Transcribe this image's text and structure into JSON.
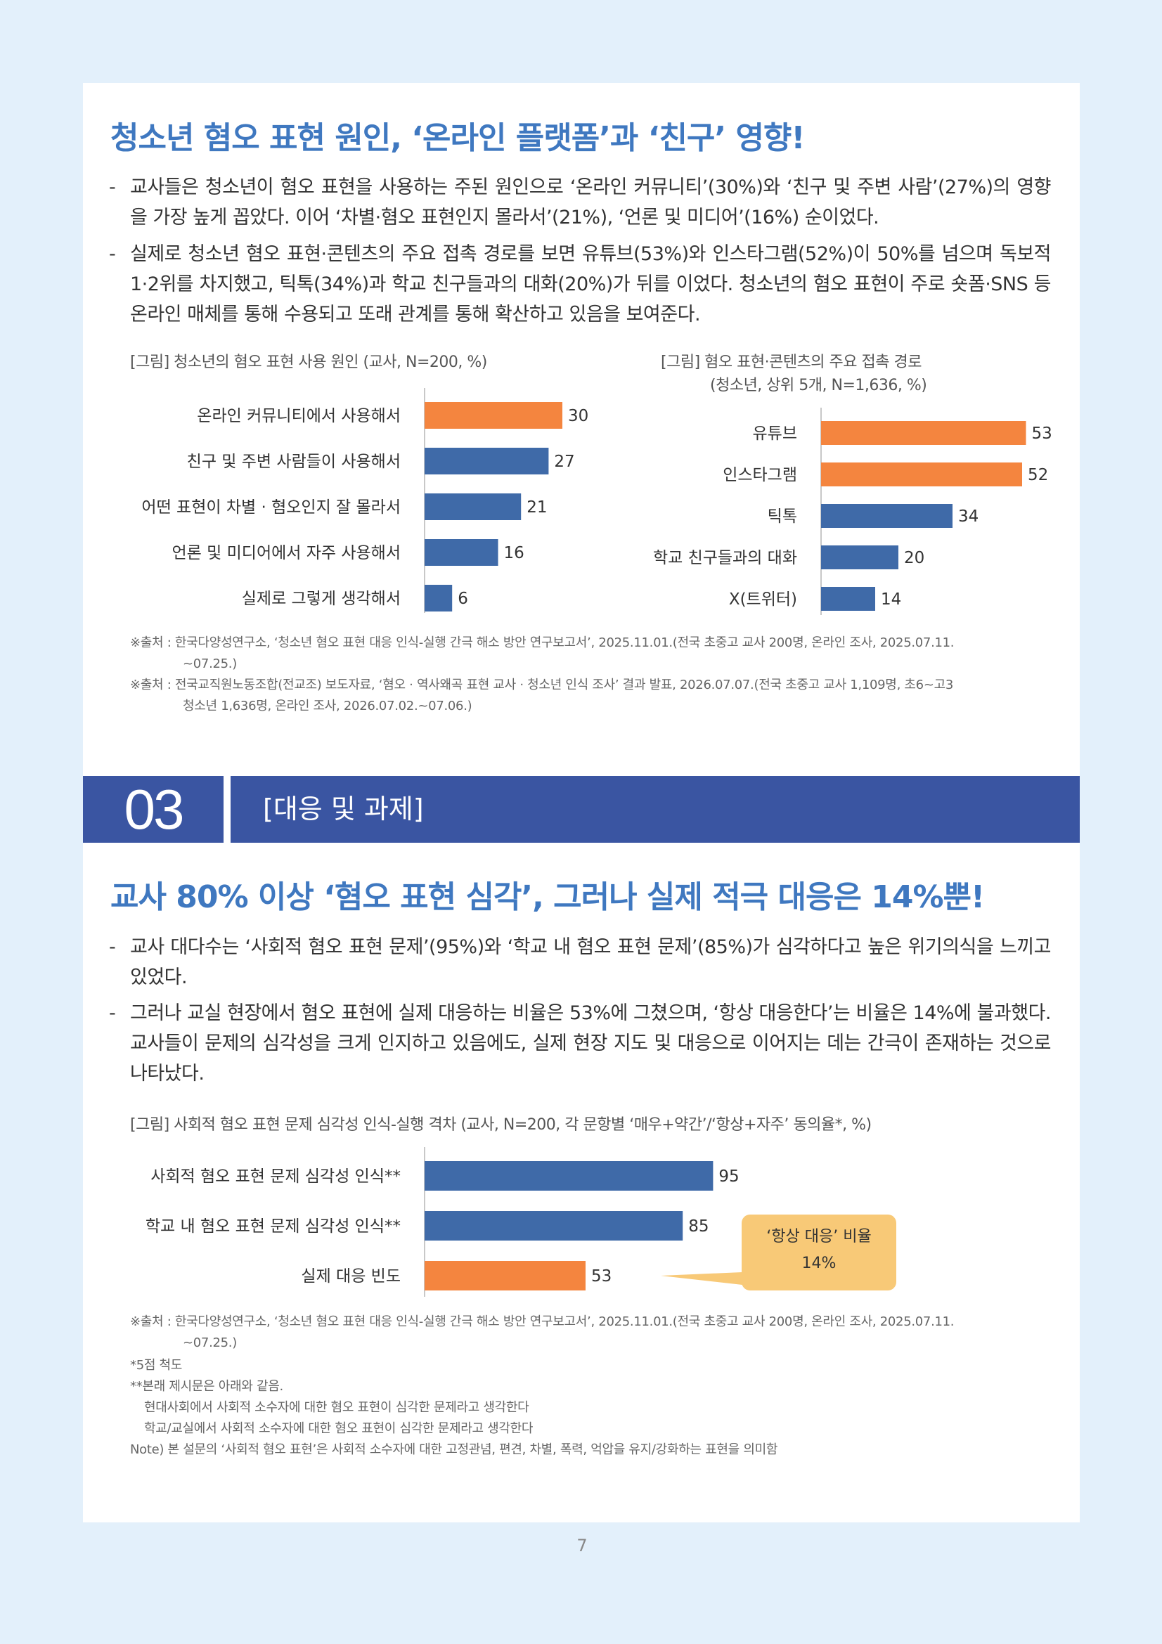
{
  "section1": {
    "headline": "청소년 혐오 표현 원인, ‘온라인 플랫폼’과 ‘친구’ 영향!",
    "bullets": [
      {
        "dash": "-",
        "text": "교사들은 청소년이 혐오 표현을 사용하는 주된 원인으로 ‘온라인 커뮤니티’(30%)와 ‘친구 및 주변 사람’(27%)의 영향을 가장 높게 꼽았다. 이어 ‘차별·혐오 표현인지 몰라서’(21%), ‘언론 및 미디어’(16%) 순이었다."
      },
      {
        "dash": "-",
        "text": "실제로 청소년 혐오 표현·콘텐츠의 주요 접촉 경로를 보면 유튜브(53%)와 인스타그램(52%)이 50%를 넘으며 독보적 1·2위를 차지했고, 틱톡(34%)과 학교 친구들과의 대화(20%)가 뒤를 이었다. 청소년의 혐오 표현이 주로 숏폼·SNS 등 온라인 매체를 통해 수용되고 또래 관계를 통해 확산하고 있음을 보여준다."
      }
    ],
    "fig1_caption": "[그림] 청소년의 혐오 표현 사용 원인 (교사, N=200, %)",
    "fig2_caption_line1": "[그림] 혐오 표현·콘텐츠의 주요 접촉 경로",
    "fig2_caption_line2": "(청소년, 상위 5개, N=1,636, %)",
    "sources": [
      {
        "line1": "※출처 : 한국다양성연구소, ‘청소년 혐오 표현 대응 인식-실행 간극 해소 방안 연구보고서’, 2025.11.01.(전국 초중고 교사 200명, 온라인 조사, 2025.07.11.",
        "line2": "~07.25.)"
      },
      {
        "line1": "※출처 : 전국교직원노동조합(전교조) 보도자료, ‘혐오 · 역사왜곡 표현 교사 · 청소년 인식 조사’ 결과 발표, 2026.07.07.(전국 초중고 교사 1,109명, 초6~고3",
        "line2": "청소년 1,636명, 온라인 조사, 2026.07.02.~07.06.)"
      }
    ]
  },
  "section3": {
    "number": "03",
    "title": "[대응 및 과제]",
    "headline": "교사 80% 이상 ‘혐오 표현 심각’, 그러나 실제 적극 대응은 14%뿐!",
    "bullets": [
      {
        "dash": "-",
        "text": "교사 대다수는 ‘사회적 혐오 표현 문제’(95%)와 ‘학교 내 혐오 표현 문제’(85%)가 심각하다고 높은 위기의식을 느끼고 있었다."
      },
      {
        "dash": "-",
        "text": "그러나 교실 현장에서 혐오 표현에 실제 대응하는 비율은 53%에 그쳤으며, ‘항상 대응한다’는 비율은 14%에 불과했다. 교사들이 문제의 심각성을 크게 인지하고 있음에도, 실제 현장 지도 및 대응으로 이어지는 데는 간극이 존재하는 것으로 나타났다."
      }
    ],
    "fig3_caption": "[그림] 사회적 혐오 표현 문제 심각성 인식-실행 격차 (교사, N=200, 각 문항별 ‘매우+약간’/‘항상+자주’ 동의율*, %)",
    "callout_line1": "‘항상 대응’ 비율",
    "callout_line2": "14%",
    "source_line1": "※출처 : 한국다양성연구소, ‘청소년 혐오 표현 대응 인식-실행 간극 해소 방안 연구보고서’, 2025.11.01.(전국 초중고 교사 200명, 온라인 조사, 2025.07.11.",
    "source_line2": "~07.25.)",
    "notes": [
      "*5점 척도",
      "**본래 제시문은 아래와 같음.",
      "현대사회에서 사회적 소수자에 대한 혐오 표현이 심각한 문제라고 생각한다",
      "학교/교실에서 사회적 소수자에 대한 혐오 표현이 심각한 문제라고 생각한다",
      "Note) 본 설문의 ‘사회적 혐오 표현’은 사회적 소수자에 대한 고정관념, 편견, 차별, 폭력, 억압을 유지/강화하는 표현을 의미함"
    ]
  },
  "page_number": "7",
  "colors": {
    "orange": "#f4853f",
    "blue": "#3f6aa8",
    "band": "#3a55a2",
    "headline": "#3f78c0",
    "callout": "#f8c977"
  },
  "chart_data": [
    {
      "type": "bar",
      "orientation": "horizontal",
      "categories": [
        "온라인 커뮤니티에서 사용해서",
        "친구 및 주변 사람들이 사용해서",
        "어떤 표현이 차별 · 혐오인지 잘 몰라서",
        "언론 및 미디어에서 자주 사용해서",
        "실제로 그렇게 생각해서"
      ],
      "values": [
        30,
        27,
        21,
        16,
        6
      ],
      "value_labels": [
        "30",
        "27",
        "21",
        "16",
        "6"
      ],
      "highlight": [
        true,
        false,
        false,
        false,
        false
      ],
      "xlim": [
        0,
        60
      ]
    },
    {
      "type": "bar",
      "orientation": "horizontal",
      "categories": [
        "유튜브",
        "인스타그램",
        "틱톡",
        "학교 친구들과의 대화",
        "X(트위터)"
      ],
      "values": [
        53,
        52,
        34,
        20,
        14
      ],
      "value_labels": [
        "53",
        "52",
        "34",
        "20",
        "14"
      ],
      "highlight": [
        true,
        true,
        false,
        false,
        false
      ],
      "xlim": [
        0,
        60
      ]
    },
    {
      "type": "bar",
      "orientation": "horizontal",
      "categories": [
        "사회적 혐오 표현 문제 심각성 인식**",
        "학교 내 혐오 표현 문제 심각성 인식**",
        "실제 대응 빈도"
      ],
      "values": [
        95,
        85,
        53
      ],
      "value_labels": [
        "95",
        "85",
        "53"
      ],
      "highlight": [
        false,
        false,
        true
      ],
      "xlim": [
        0,
        100
      ]
    }
  ]
}
